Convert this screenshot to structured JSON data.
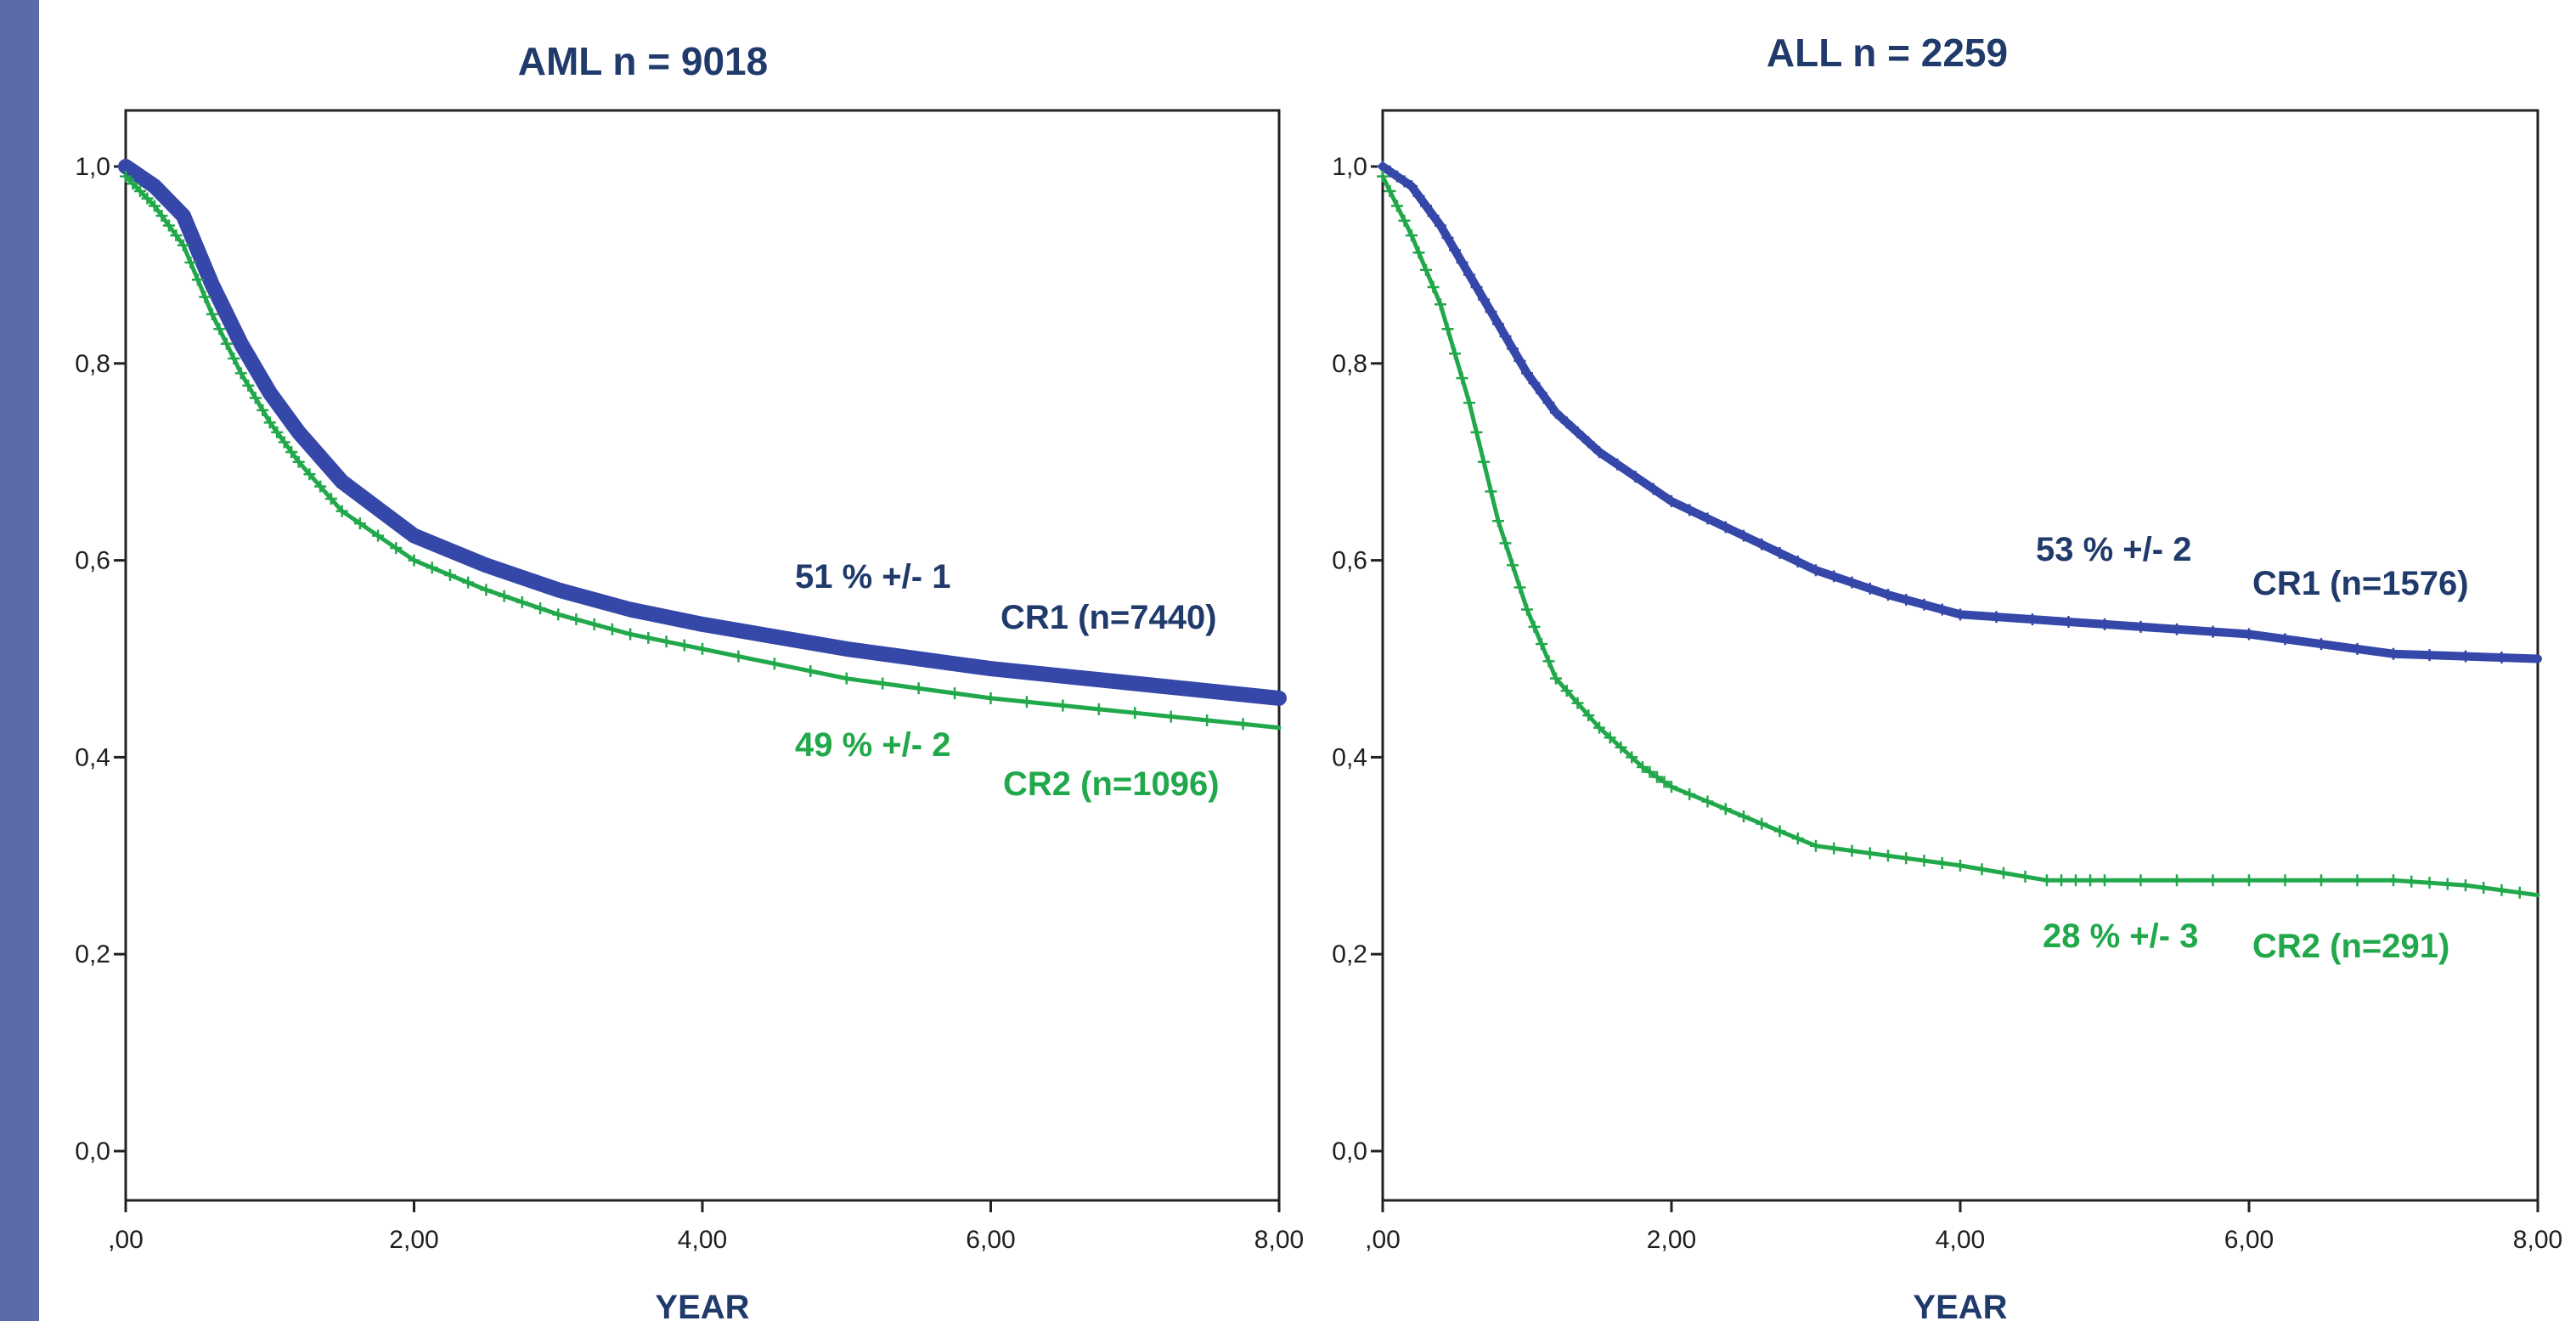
{
  "colors": {
    "cr1": "#3547a8",
    "cr2": "#21a84a",
    "title": "#1f3a6b",
    "ann_blue": "#1f3a6b",
    "ann_green": "#21a84a",
    "axis_label": "#1f3a6b",
    "side_bar": "#5b6aa8"
  },
  "chart_data": [
    {
      "type": "line",
      "title": "AML n = 9018",
      "xlabel": "YEAR",
      "ylabel": "",
      "xlim": [
        0,
        8
      ],
      "ylim": [
        0,
        1
      ],
      "x_ticks": [
        ",00",
        "2,00",
        "4,00",
        "6,00",
        "8,00"
      ],
      "y_ticks": [
        "0,0",
        "0,2",
        "0,4",
        "0,6",
        "0,8",
        "1,0"
      ],
      "series": [
        {
          "name": "CR1 (n=7440)",
          "annotation": "51 % +/- 1",
          "x": [
            0,
            0.2,
            0.4,
            0.6,
            0.8,
            1.0,
            1.2,
            1.5,
            2.0,
            2.5,
            3.0,
            3.5,
            4.0,
            5.0,
            6.0,
            7.0,
            8.0
          ],
          "y": [
            1.0,
            0.98,
            0.95,
            0.88,
            0.82,
            0.77,
            0.73,
            0.68,
            0.625,
            0.595,
            0.57,
            0.55,
            0.535,
            0.51,
            0.49,
            0.475,
            0.46
          ]
        },
        {
          "name": "CR2 (n=1096)",
          "annotation": "49 % +/- 2",
          "x": [
            0,
            0.2,
            0.4,
            0.6,
            0.8,
            1.0,
            1.2,
            1.5,
            2.0,
            2.5,
            3.0,
            3.5,
            4.0,
            5.0,
            6.0,
            7.0,
            8.0
          ],
          "y": [
            0.99,
            0.96,
            0.92,
            0.85,
            0.79,
            0.74,
            0.7,
            0.65,
            0.6,
            0.57,
            0.545,
            0.525,
            0.51,
            0.48,
            0.46,
            0.445,
            0.43
          ]
        }
      ]
    },
    {
      "type": "line",
      "title": "ALL n = 2259",
      "xlabel": "YEAR",
      "ylabel": "",
      "xlim": [
        0,
        8
      ],
      "ylim": [
        0,
        1
      ],
      "x_ticks": [
        ",00",
        "2,00",
        "4,00",
        "6,00",
        "8,00"
      ],
      "y_ticks": [
        "0,0",
        "0,2",
        "0,4",
        "0,6",
        "0,8",
        "1,0"
      ],
      "series": [
        {
          "name": "CR1 (n=1576)",
          "annotation": "53 % +/- 2",
          "x": [
            0,
            0.2,
            0.4,
            0.6,
            0.8,
            1.0,
            1.2,
            1.5,
            2.0,
            2.5,
            3.0,
            3.5,
            4.0,
            5.0,
            6.0,
            7.0,
            8.0
          ],
          "y": [
            1.0,
            0.98,
            0.94,
            0.89,
            0.84,
            0.79,
            0.75,
            0.71,
            0.66,
            0.625,
            0.59,
            0.565,
            0.545,
            0.535,
            0.525,
            0.505,
            0.5
          ]
        },
        {
          "name": "CR2 (n=291)",
          "annotation": "28 % +/- 3",
          "x": [
            0,
            0.2,
            0.4,
            0.6,
            0.8,
            1.0,
            1.2,
            1.5,
            1.8,
            2.0,
            2.5,
            3.0,
            3.5,
            4.0,
            4.6,
            5.0,
            6.0,
            7.0,
            7.5,
            8.0
          ],
          "y": [
            0.99,
            0.93,
            0.86,
            0.76,
            0.64,
            0.55,
            0.48,
            0.43,
            0.39,
            0.37,
            0.34,
            0.31,
            0.3,
            0.29,
            0.275,
            0.275,
            0.275,
            0.275,
            0.27,
            0.26
          ]
        }
      ]
    }
  ]
}
